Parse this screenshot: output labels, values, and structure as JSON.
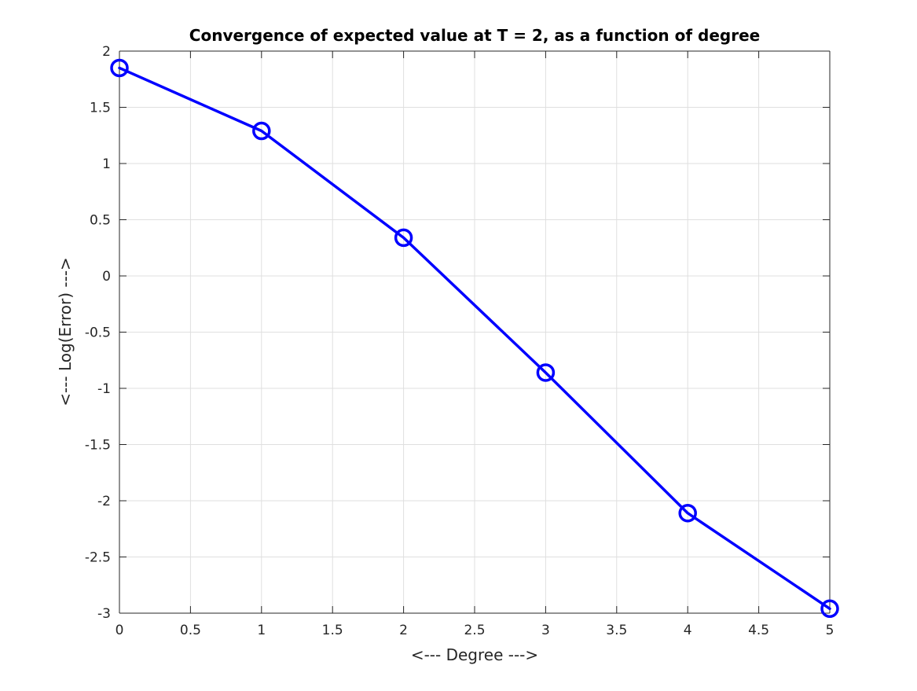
{
  "chart_data": {
    "type": "line",
    "title": "Convergence of expected value at T = 2, as a function of degree",
    "xlabel": "<--- Degree --->",
    "ylabel": "<--- Log(Error) --->",
    "xlim": [
      0,
      5
    ],
    "ylim": [
      -3,
      2
    ],
    "xticks": [
      0,
      0.5,
      1,
      1.5,
      2,
      2.5,
      3,
      3.5,
      4,
      4.5,
      5
    ],
    "xtick_labels": [
      "0",
      "0.5",
      "1",
      "1.5",
      "2",
      "2.5",
      "3",
      "3.5",
      "4",
      "4.5",
      "5"
    ],
    "yticks": [
      2,
      1.5,
      1,
      0.5,
      0,
      -0.5,
      -1,
      -1.5,
      -2,
      -2.5,
      -3
    ],
    "ytick_labels": [
      "2",
      "1.5",
      "1",
      "0.5",
      "0",
      "-0.5",
      "-1",
      "-1.5",
      "-2",
      "-2.5",
      "-3"
    ],
    "grid": true,
    "box": true,
    "series": [
      {
        "x": [
          0,
          1,
          2,
          3,
          4,
          5
        ],
        "y": [
          1.85,
          1.29,
          0.34,
          -0.86,
          -2.11,
          -2.96
        ],
        "color": "#0000ff",
        "marker": "circle"
      }
    ]
  }
}
